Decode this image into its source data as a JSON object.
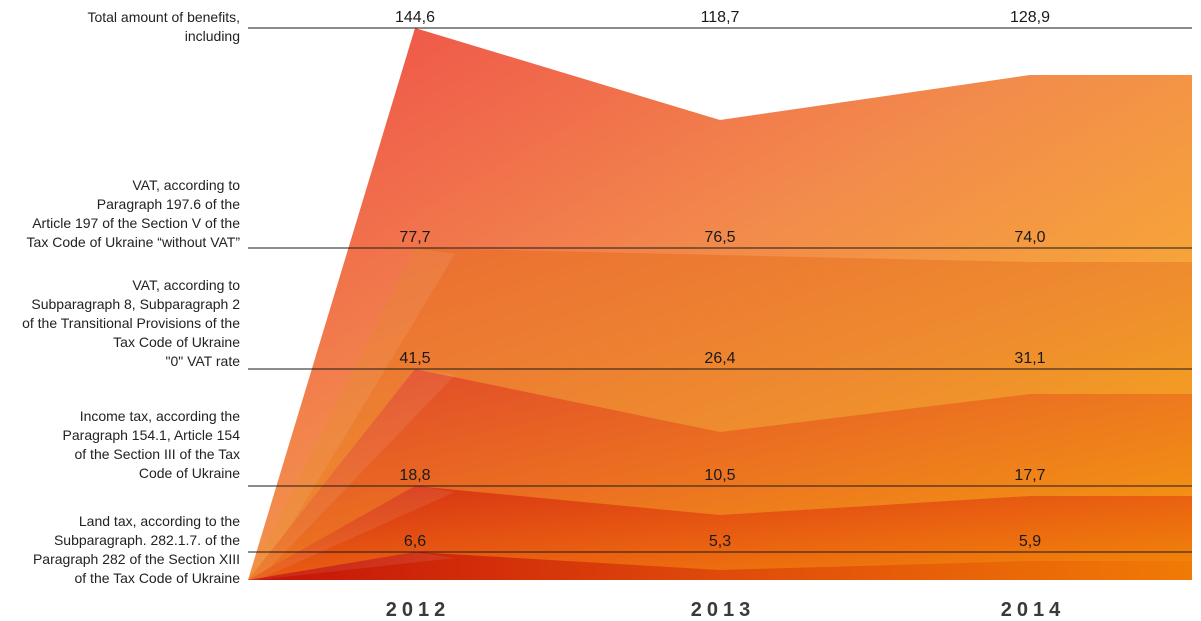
{
  "chart_data": {
    "type": "area",
    "categories": [
      "2012",
      "2013",
      "2014"
    ],
    "series": [
      {
        "name": "Total amount of benefits, including",
        "values": [
          144.6,
          118.7,
          128.9
        ],
        "labels": [
          "144,6",
          "118,7",
          "128,9"
        ]
      },
      {
        "name": "VAT, according to Paragraph 197.6 of the Article 197 of the Section V of the Tax Code of Ukraine “without VAT”",
        "values": [
          77.7,
          76.5,
          74.0
        ],
        "labels": [
          "77,7",
          "76,5",
          "74,0"
        ]
      },
      {
        "name": "VAT, according to Subparagraph 8, Subparagraph 2 of the Transitional Provisions of the Tax Code of Ukraine \"0\" VAT rate",
        "values": [
          41.5,
          26.4,
          31.1
        ],
        "labels": [
          "41,5",
          "26,4",
          "31,1"
        ]
      },
      {
        "name": "Income tax, according the Paragraph 154.1, Article 154 of the Section III of the Tax Code of Ukraine",
        "values": [
          18.8,
          10.5,
          17.7
        ],
        "labels": [
          "18,8",
          "10,5",
          "17,7"
        ]
      },
      {
        "name": "Land tax, according to the Subparagraph. 282.1.7. of the Paragraph 282 of the Section XIII of the Tax Code of Ukraine",
        "values": [
          6.6,
          5.3,
          5.9
        ],
        "labels": [
          "6,6",
          "5,3",
          "5,9"
        ]
      }
    ],
    "row_labels": [
      "Total amount of benefits,\nincluding",
      "VAT, according to\nParagraph 197.6 of the\nArticle 197 of the Section V of the\nTax Code of Ukraine “without VAT”",
      "VAT, according to\nSubparagraph 8, Subparagraph 2\nof the Transitional Provisions of the\nTax Code of Ukraine\n\"0\" VAT rate",
      "Income tax, according the\nParagraph 154.1, Article 154\nof the Section III of the Tax\nCode of Ukraine",
      "Land tax, according to the\nSubparagraph. 282.1.7. of the\nParagraph 282 of the Section XIII\nof the Tax Code of Ukraine"
    ],
    "colors": {
      "top": "#f0534a",
      "right": "#fbbf24",
      "mid": "#f18a3c",
      "deep": "#c81a0a"
    },
    "legend": "none",
    "grid": false
  }
}
